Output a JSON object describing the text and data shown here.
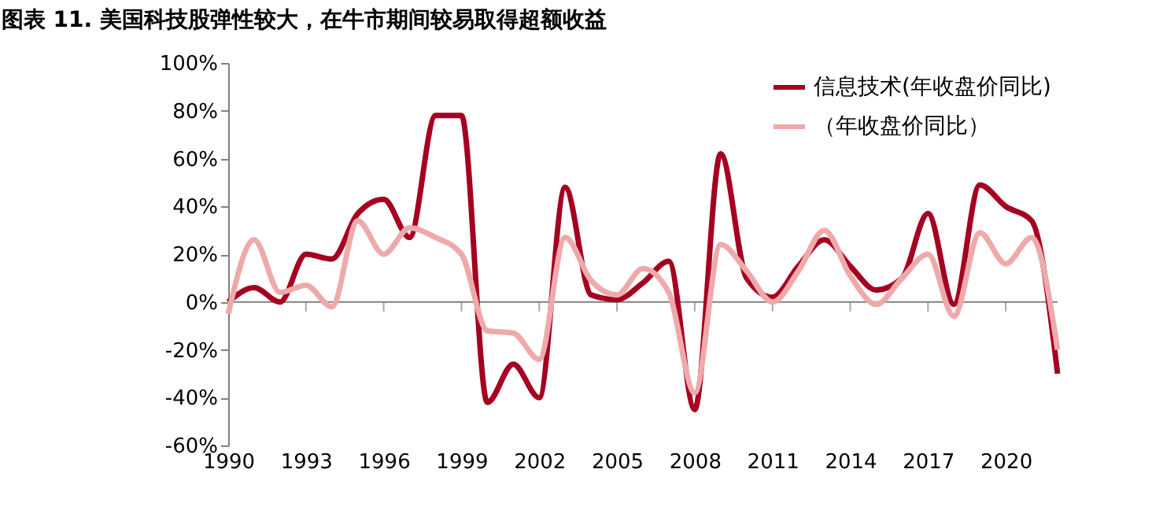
{
  "chart_data": {
    "type": "line",
    "title": "图表 11. 美国科技股弹性较大，在牛市期间较易取得超额收益",
    "x": [
      1990,
      1991,
      1992,
      1993,
      1994,
      1995,
      1996,
      1997,
      1998,
      1999,
      2000,
      2001,
      2002,
      2003,
      2004,
      2005,
      2006,
      2007,
      2008,
      2009,
      2010,
      2011,
      2012,
      2013,
      2014,
      2015,
      2016,
      2017,
      2018,
      2019,
      2020,
      2021,
      2022
    ],
    "series": [
      {
        "name": "信息技术(年收盘价同比)",
        "color": "#a50021",
        "values": [
          0,
          6,
          0,
          20,
          18,
          37,
          43,
          27,
          78,
          78,
          -42,
          -26,
          -40,
          48,
          3,
          1,
          8,
          17,
          -45,
          62,
          10,
          2,
          15,
          26,
          15,
          5,
          10,
          37,
          -1,
          49,
          40,
          34,
          -30
        ]
      },
      {
        "name": "（年收盘价同比）",
        "color": "#eeaaaa",
        "values": [
          -5,
          26,
          4,
          7,
          -2,
          34,
          20,
          31,
          27,
          20,
          -12,
          -13,
          -24,
          27,
          9,
          3,
          14,
          4,
          -38,
          24,
          13,
          0,
          13,
          30,
          11,
          -1,
          10,
          20,
          -6,
          29,
          16,
          27,
          -20
        ]
      }
    ],
    "xlim": [
      1990,
      2022
    ],
    "xticks": [
      1990,
      1993,
      1996,
      1999,
      2002,
      2005,
      2008,
      2011,
      2014,
      2017,
      2020
    ],
    "ylim": [
      -60,
      100
    ],
    "yticks": [
      {
        "value": -60,
        "label": "-60%"
      },
      {
        "value": -40,
        "label": "-40%"
      },
      {
        "value": -20,
        "label": "-20%"
      },
      {
        "value": 0,
        "label": "0%"
      },
      {
        "value": 20,
        "label": "20%"
      },
      {
        "value": 40,
        "label": "40%"
      },
      {
        "value": 60,
        "label": "60%"
      },
      {
        "value": 80,
        "label": "80%"
      },
      {
        "value": 100,
        "label": "100%"
      }
    ],
    "ref_lines": [
      {
        "axis": "y",
        "value": 0,
        "color": "#808080"
      }
    ],
    "legend": "top right",
    "grid": false,
    "line_style": "solid",
    "marker": "none"
  }
}
